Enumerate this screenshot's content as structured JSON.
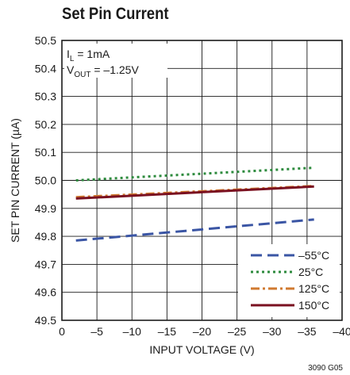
{
  "chart_data": {
    "type": "line",
    "title": "Set Pin Current",
    "xlabel": "INPUT VOLTAGE (V)",
    "ylabel": "SET PIN CURRENT (µA)",
    "xlim": [
      0,
      -40
    ],
    "ylim": [
      49.5,
      50.5
    ],
    "xticks": [
      "0",
      "–5",
      "–10",
      "–15",
      "–20",
      "–25",
      "–30",
      "–35",
      "–40"
    ],
    "yticks": [
      "49.5",
      "49.6",
      "49.7",
      "49.8",
      "49.9",
      "50.0",
      "50.1",
      "50.2",
      "50.3",
      "50.4",
      "50.5"
    ],
    "grid": true,
    "legend_position": "bottom-right",
    "annotations": {
      "line1_main": "I",
      "line1_sub": "L",
      "line1_rest": " = 1mA",
      "line2_main": "V",
      "line2_sub": "OUT",
      "line2_rest": " = –1.25V"
    },
    "figure_id": "3090 G05",
    "series": [
      {
        "name": "–55°C",
        "color": "#3a55a4",
        "dash": "long-dash",
        "x": [
          -2,
          -36
        ],
        "y": [
          49.785,
          49.86
        ]
      },
      {
        "name": "25°C",
        "color": "#2e8b3e",
        "dash": "dotted",
        "x": [
          -2,
          -36
        ],
        "y": [
          50.0,
          50.045
        ]
      },
      {
        "name": "125°C",
        "color": "#d07a30",
        "dash": "dash-dot",
        "x": [
          -2,
          -36
        ],
        "y": [
          49.94,
          49.98
        ]
      },
      {
        "name": "150°C",
        "color": "#7a1020",
        "dash": "solid",
        "x": [
          -2,
          -36
        ],
        "y": [
          49.935,
          49.978
        ]
      }
    ]
  }
}
